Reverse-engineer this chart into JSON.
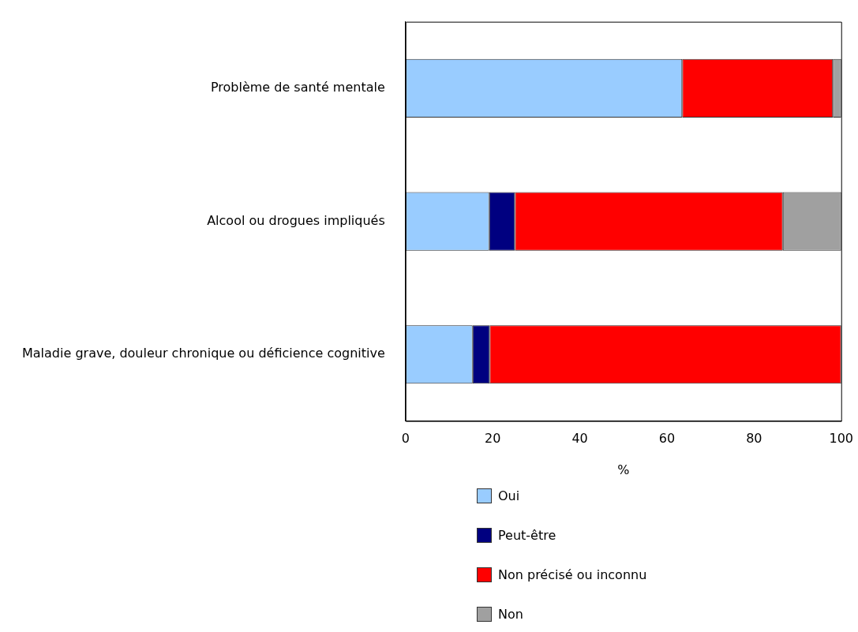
{
  "chart_data": {
    "type": "bar",
    "orientation": "horizontal",
    "stacked": true,
    "categories": [
      "Problème de santé mentale",
      "Alcool ou drogues impliqués",
      "Maladie grave, douleur chronique ou déficience cognitive"
    ],
    "series": [
      {
        "name": "Oui",
        "color": "#99ccff",
        "values": [
          63.5,
          19.2,
          15.4
        ]
      },
      {
        "name": "Peut-être",
        "color": "#000080",
        "values": [
          0,
          5.9,
          3.9
        ]
      },
      {
        "name": "Non précisé ou inconnu",
        "color": "#ff0000",
        "values": [
          34.6,
          61.5,
          80.7
        ]
      },
      {
        "name": "Non",
        "color": "#a0a0a0",
        "values": [
          1.9,
          13.4,
          0
        ]
      }
    ],
    "xlim": [
      0,
      100
    ],
    "xticks": [
      0,
      20,
      40,
      60,
      80,
      100
    ],
    "xlabel": "%",
    "grid": false,
    "legend": "bottom"
  }
}
